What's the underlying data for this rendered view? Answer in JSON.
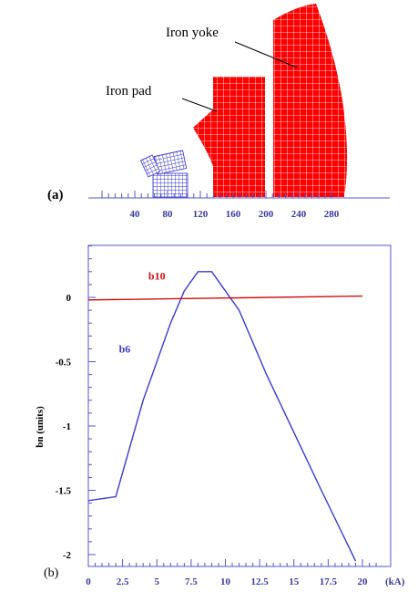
{
  "figure": {
    "panel_a_label": "(a)",
    "panel_b_label": "(b)",
    "annotations": {
      "iron_yoke": "Iron yoke",
      "iron_pad": "Iron pad"
    }
  },
  "colors": {
    "iron": "#ff0000",
    "coil": "#3333cc",
    "b6": "#3a3acc",
    "b10": "#cc1111",
    "axis": "#5555cc"
  },
  "chart_data": [
    {
      "type": "diagram-axis",
      "x_ticks": [
        "40",
        "80",
        "120",
        "160",
        "200",
        "240",
        "280"
      ]
    },
    {
      "type": "line",
      "ylabel": "bn (units)",
      "xlabel_unit": "(kA)",
      "x_ticks": [
        "0",
        "2.5",
        "5",
        "7.5",
        "10",
        "12.5",
        "15",
        "17.5",
        "20"
      ],
      "y_ticks": [
        "0",
        "-0.5",
        "-1",
        "-1.5",
        "-2"
      ],
      "xlim": [
        -0.5,
        21
      ],
      "ylim": [
        -2.2,
        0.45
      ],
      "series": [
        {
          "name": "b6",
          "x": [
            0,
            2,
            4,
            6,
            7,
            8,
            9,
            10,
            11,
            13,
            15,
            17,
            19.5
          ],
          "y": [
            -1.58,
            -1.55,
            -0.8,
            -0.2,
            0.05,
            0.2,
            0.2,
            0.05,
            -0.1,
            -0.6,
            -1.05,
            -1.5,
            -2.05
          ]
        },
        {
          "name": "b10",
          "x": [
            0,
            20
          ],
          "y": [
            -0.02,
            0.01
          ]
        }
      ]
    }
  ]
}
